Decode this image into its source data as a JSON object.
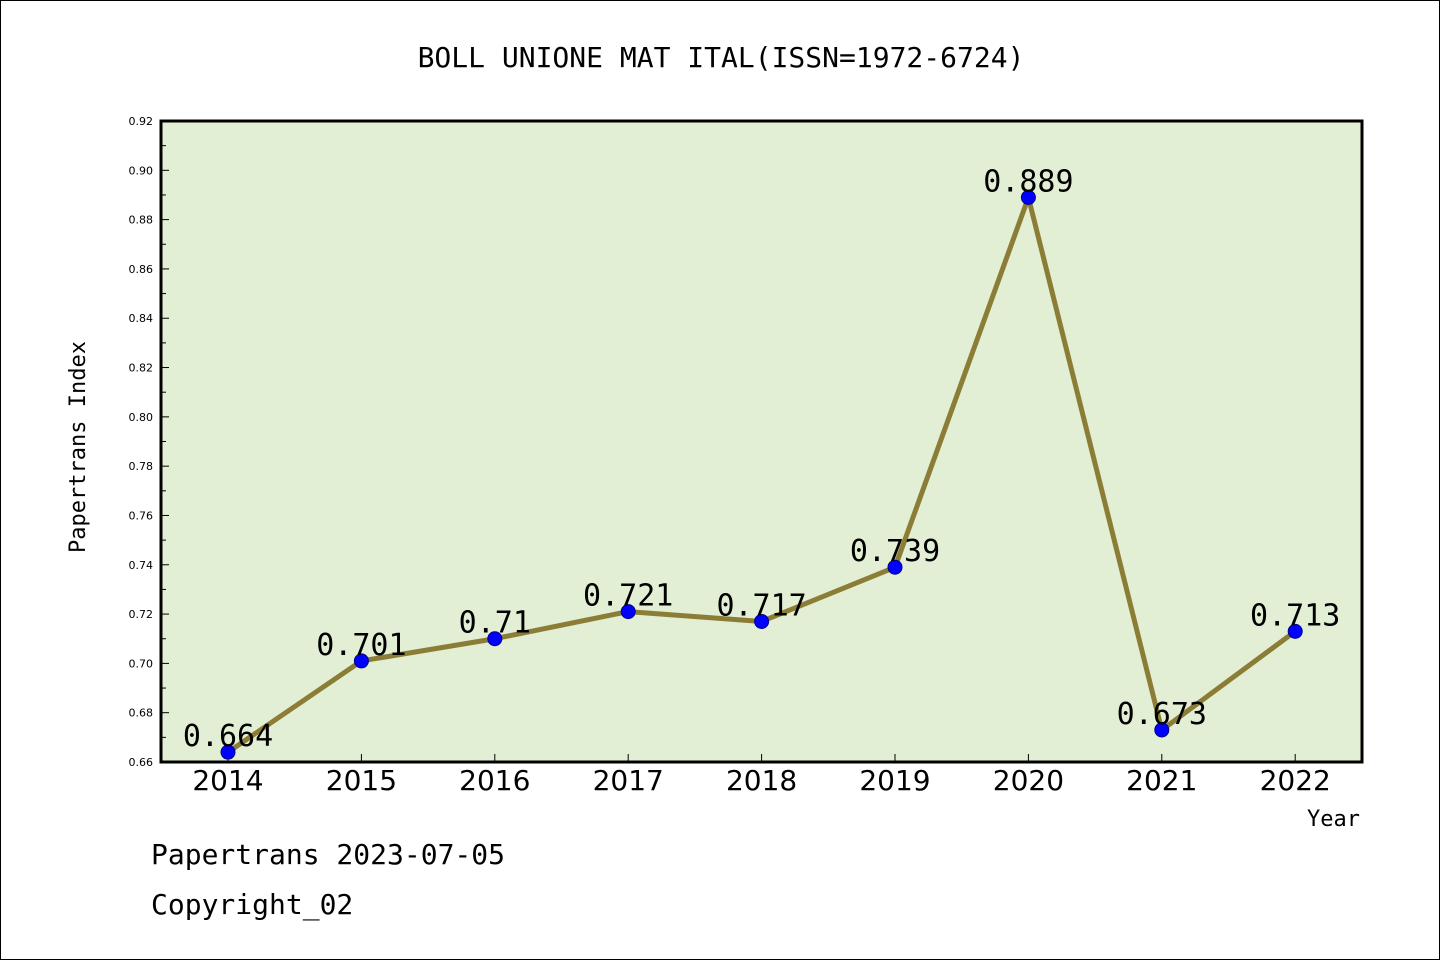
{
  "chart_data": {
    "type": "line",
    "title": "BOLL UNIONE MAT ITAL(ISSN=1972-6724)",
    "xlabel": "Year",
    "ylabel": "Papertrans Index",
    "categories": [
      "2014",
      "2015",
      "2016",
      "2017",
      "2018",
      "2019",
      "2020",
      "2021",
      "2022"
    ],
    "series": [
      {
        "values": [
          0.664,
          0.701,
          0.71,
          0.721,
          0.717,
          0.739,
          0.889,
          0.673,
          0.713
        ],
        "labels": [
          "0.664",
          "0.701",
          "0.71",
          "0.721",
          "0.717",
          "0.739",
          "0.889",
          "0.673",
          "0.713"
        ]
      }
    ],
    "ylim": [
      0.66,
      0.92
    ],
    "yticks": [
      "0.66",
      "0.68",
      "0.70",
      "0.72",
      "0.74",
      "0.76",
      "0.78",
      "0.80",
      "0.82",
      "0.84",
      "0.86",
      "0.88",
      "0.90",
      "0.92"
    ],
    "grid": false,
    "colors": {
      "plot_background": "#e2efd5",
      "line": "#8b7d35",
      "marker": "#0000ff"
    }
  },
  "footer": {
    "line1": "Papertrans 2023-07-05",
    "line2": "Copyright_02"
  }
}
